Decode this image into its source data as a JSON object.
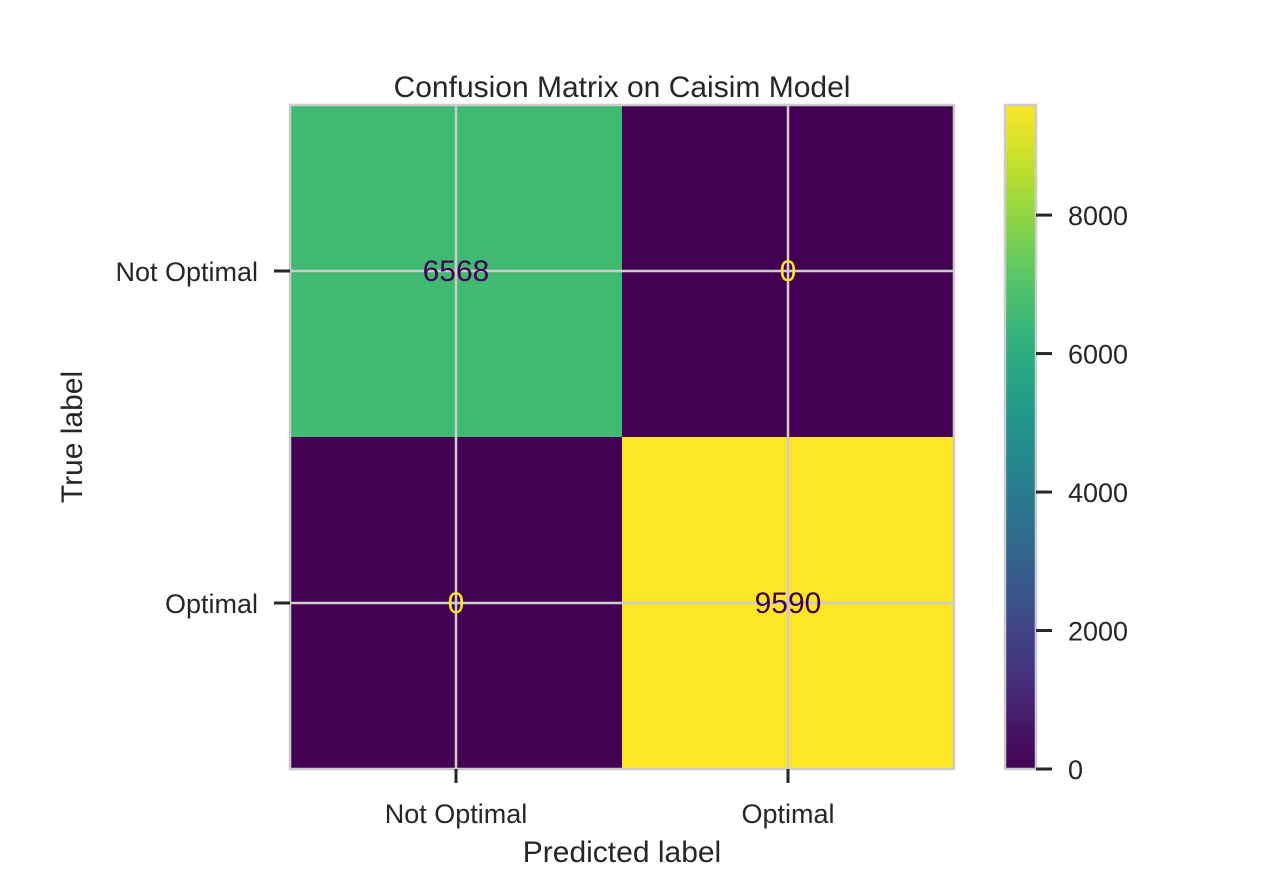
{
  "chart_data": {
    "type": "heatmap",
    "title": "Confusion Matrix on Caisim Model",
    "xlabel": "Predicted label",
    "ylabel": "True label",
    "x_categories": [
      "Not Optimal",
      "Optimal"
    ],
    "y_categories": [
      "Not Optimal",
      "Optimal"
    ],
    "values": [
      [
        6568,
        0
      ],
      [
        0,
        9590
      ]
    ],
    "colormap": "viridis",
    "colorbar": {
      "range": [
        0,
        9590
      ],
      "ticks": [
        0,
        2000,
        4000,
        6000,
        8000
      ]
    },
    "grid": true,
    "colors": {
      "low": "#440154",
      "high": "#fde725",
      "grid": "#cccccc",
      "text": "#262626"
    }
  }
}
